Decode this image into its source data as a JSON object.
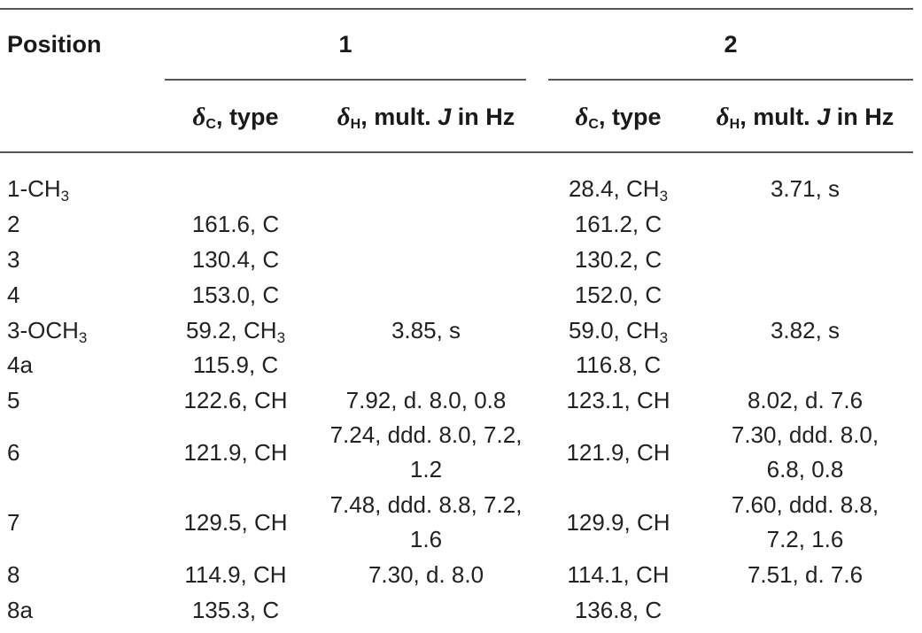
{
  "header": {
    "position": "Position",
    "group1": "1",
    "group2": "2",
    "delta": "δ",
    "sub_c": "C",
    "sub_h": "H",
    "type_suffix": ", type",
    "mult_text": ", mult. ",
    "j": "J",
    "in_hz": " in Hz"
  },
  "rows": [
    {
      "pos": "1-CH",
      "pos_sub": "3",
      "c1": "",
      "h1": "",
      "c2": "28.4, CH",
      "c2_sub": "3",
      "h2": "3.71, s"
    },
    {
      "pos": "2",
      "c1": "161.6, C",
      "h1": "",
      "c2": "161.2, C",
      "h2": ""
    },
    {
      "pos": "3",
      "c1": "130.4, C",
      "h1": "",
      "c2": "130.2, C",
      "h2": ""
    },
    {
      "pos": "4",
      "c1": "153.0, C",
      "h1": "",
      "c2": "152.0, C",
      "h2": ""
    },
    {
      "pos": "3-OCH",
      "pos_sub": "3",
      "c1": "59.2, CH",
      "c1_sub": "3",
      "h1": "3.85, s",
      "c2": "59.0, CH",
      "c2_sub": "3",
      "h2": "3.82, s"
    },
    {
      "pos": "4a",
      "c1": "115.9, C",
      "h1": "",
      "c2": "116.8, C",
      "h2": ""
    },
    {
      "pos": "5",
      "c1": "122.6, CH",
      "h1": "7.92, d. 8.0, 0.8",
      "c2": "123.1, CH",
      "h2": "8.02, d. 7.6"
    },
    {
      "pos": "6",
      "c1": "121.9, CH",
      "h1": "7.24, ddd. 8.0, 7.2,",
      "h1b": "1.2",
      "c2": "121.9, CH",
      "h2": "7.30, ddd. 8.0,",
      "h2b": "6.8, 0.8"
    },
    {
      "pos": "7",
      "c1": "129.5, CH",
      "h1": "7.48, ddd. 8.8, 7.2,",
      "h1b": "1.6",
      "c2": "129.9, CH",
      "h2": "7.60, ddd. 8.8,",
      "h2b": "7.2, 1.6"
    },
    {
      "pos": "8",
      "c1": "114.9, CH",
      "h1": "7.30, d. 8.0",
      "c2": "114.1, CH",
      "h2": "7.51, d. 7.6"
    },
    {
      "pos": "8a",
      "c1": "135.3, C",
      "h1": "",
      "c2": "136.8, C",
      "h2": ""
    }
  ]
}
